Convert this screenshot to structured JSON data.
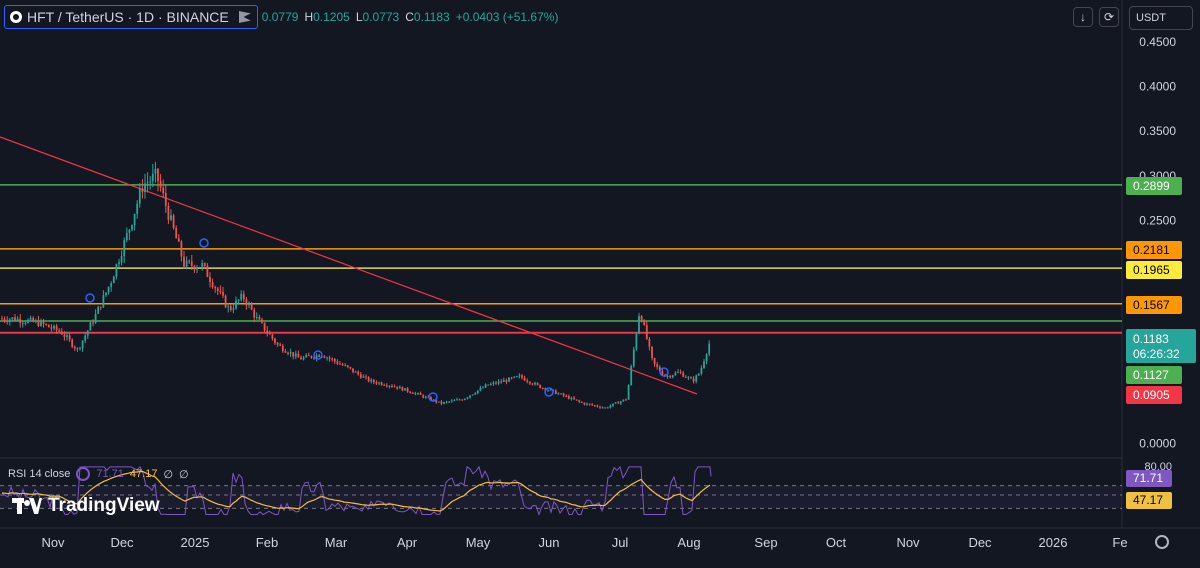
{
  "header": {
    "symbol": "HFT / TetherUS · 1D · BINANCE",
    "ohlc": [
      {
        "k": "",
        "v": "0.0779"
      },
      {
        "k": "H",
        "v": "0.1205"
      },
      {
        "k": "L",
        "v": "0.0773"
      },
      {
        "k": "C",
        "v": "0.1183"
      },
      {
        "k": "",
        "v": "+0.0403 (+51.67%)"
      }
    ]
  },
  "toolbar": {
    "download_icon": "arrow-down-icon",
    "refresh_icon": "refresh-icon",
    "currency": "USDT"
  },
  "rsi": {
    "name": "RSI 14 close",
    "rsi_value": "71.71",
    "ma_value": "47.17",
    "extra1": "∅",
    "extra2": "∅"
  },
  "logo": "TradingView",
  "colors": {
    "up": "#26a69a",
    "down": "#ef5350",
    "green_line": "#4caf50",
    "orange_line": "#f59d0b",
    "yellow_line": "#e8d44d",
    "red_line": "#f23645",
    "trend": "#f23645",
    "rsi": "#7e57c2",
    "rsi_ma": "#f0c040"
  },
  "chart_data": {
    "type": "candlestick",
    "price_axis": {
      "min": 0,
      "max": 0.45,
      "ticks": [
        "0.0000",
        "0.2500",
        "0.3000",
        "0.3500",
        "0.4000",
        "0.4500"
      ]
    },
    "time_axis": {
      "labels": [
        "Nov",
        "Dec",
        "2025",
        "Feb",
        "Mar",
        "Apr",
        "May",
        "Jun",
        "Jul",
        "Aug",
        "Sep",
        "Oct",
        "Nov",
        "Dec",
        "2026",
        "Fe"
      ]
    },
    "horizontal_levels": [
      {
        "value": 0.2899,
        "label": "0.2899",
        "style": "green"
      },
      {
        "value": 0.2181,
        "label": "0.2181",
        "style": "orange"
      },
      {
        "value": 0.1965,
        "label": "0.1965",
        "style": "yellow"
      },
      {
        "value": 0.1567,
        "label": "0.1567",
        "style": "orange"
      },
      {
        "value": 0.1127,
        "label": "0.1127",
        "style": "green"
      },
      {
        "value": 0.0905,
        "label": "0.0905",
        "style": "red"
      }
    ],
    "last_price": {
      "value": 0.1183,
      "label": "0.1183",
      "countdown": "06:26:32"
    },
    "trendline": {
      "from": [
        "Oct",
        0.345
      ],
      "to": [
        "Aug",
        0.056
      ]
    },
    "close_path": [
      [
        "Oct",
        0.14
      ],
      [
        "Oct",
        0.135
      ],
      [
        "Nov",
        0.125
      ],
      [
        "Nov",
        0.105
      ],
      [
        "Nov",
        0.14
      ],
      [
        "Nov",
        0.18
      ],
      [
        "Dec",
        0.24
      ],
      [
        "Dec",
        0.29
      ],
      [
        "Dec",
        0.3
      ],
      [
        "Dec",
        0.25
      ],
      [
        "Dec",
        0.2
      ],
      [
        "Jan",
        0.2
      ],
      [
        "Jan",
        0.175
      ],
      [
        "Jan",
        0.15
      ],
      [
        "Jan",
        0.165
      ],
      [
        "Jan",
        0.14
      ],
      [
        "Feb",
        0.11
      ],
      [
        "Feb",
        0.095
      ],
      [
        "Feb",
        0.1
      ],
      [
        "Mar",
        0.085
      ],
      [
        "Mar",
        0.07
      ],
      [
        "Mar",
        0.065
      ],
      [
        "Apr",
        0.055
      ],
      [
        "Apr",
        0.045
      ],
      [
        "Apr",
        0.05
      ],
      [
        "May",
        0.065
      ],
      [
        "May",
        0.07
      ],
      [
        "May",
        0.075
      ],
      [
        "May",
        0.065
      ],
      [
        "Jun",
        0.055
      ],
      [
        "Jun",
        0.045
      ],
      [
        "Jun",
        0.04
      ],
      [
        "Jul",
        0.05
      ],
      [
        "Jul",
        0.15
      ],
      [
        "Jul",
        0.09
      ],
      [
        "Jul",
        0.075
      ],
      [
        "Jul",
        0.08
      ],
      [
        "Aug",
        0.07
      ],
      [
        "Aug",
        0.08
      ],
      [
        "Aug",
        0.1183
      ]
    ],
    "rsi_axis": {
      "ticks": [
        "80.00"
      ],
      "levels": [
        70,
        50,
        30
      ]
    }
  }
}
